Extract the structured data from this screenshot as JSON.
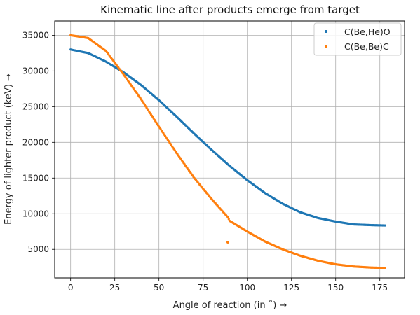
{
  "chart_data": {
    "type": "scatter",
    "title": "Kinematic line after products emerge from target",
    "xlabel": "Angle of reaction (in $^\\circ$) $\\rightarrow$",
    "xlabel_display": "Angle of reaction (in ˚)  →",
    "ylabel": "Energy of lighter product (keV) $\\rightarrow$",
    "ylabel_display": "Energy of lighter product (keV)  →",
    "xlim": [
      -9,
      189
    ],
    "ylim": [
      1000,
      37000
    ],
    "xticks": [
      0,
      25,
      50,
      75,
      100,
      125,
      150,
      175
    ],
    "yticks": [
      5000,
      10000,
      15000,
      20000,
      25000,
      30000,
      35000
    ],
    "grid": true,
    "legend_position": "top-right",
    "series": [
      {
        "name": "C(Be,He)O",
        "color": "#1f77b4",
        "x": [
          0,
          10,
          20,
          30,
          40,
          50,
          60,
          70,
          80,
          90,
          100,
          110,
          120,
          130,
          140,
          150,
          160,
          170,
          178
        ],
        "y": [
          33000,
          32500,
          31300,
          29800,
          28000,
          25900,
          23600,
          21200,
          18900,
          16700,
          14700,
          12900,
          11400,
          10200,
          9400,
          8900,
          8500,
          8400,
          8350
        ]
      },
      {
        "name": "C(Be,Be)C",
        "color": "#ff7f0e",
        "x": [
          0,
          10,
          20,
          30,
          40,
          50,
          60,
          70,
          80,
          89,
          90,
          100,
          110,
          120,
          130,
          140,
          150,
          160,
          170,
          178
        ],
        "y": [
          35000,
          34600,
          32800,
          29500,
          26000,
          22200,
          18500,
          15000,
          12000,
          9500,
          9000,
          7500,
          6100,
          5000,
          4100,
          3400,
          2900,
          2600,
          2450,
          2400
        ],
        "outliers": [
          [
            89,
            6000
          ]
        ]
      }
    ]
  }
}
